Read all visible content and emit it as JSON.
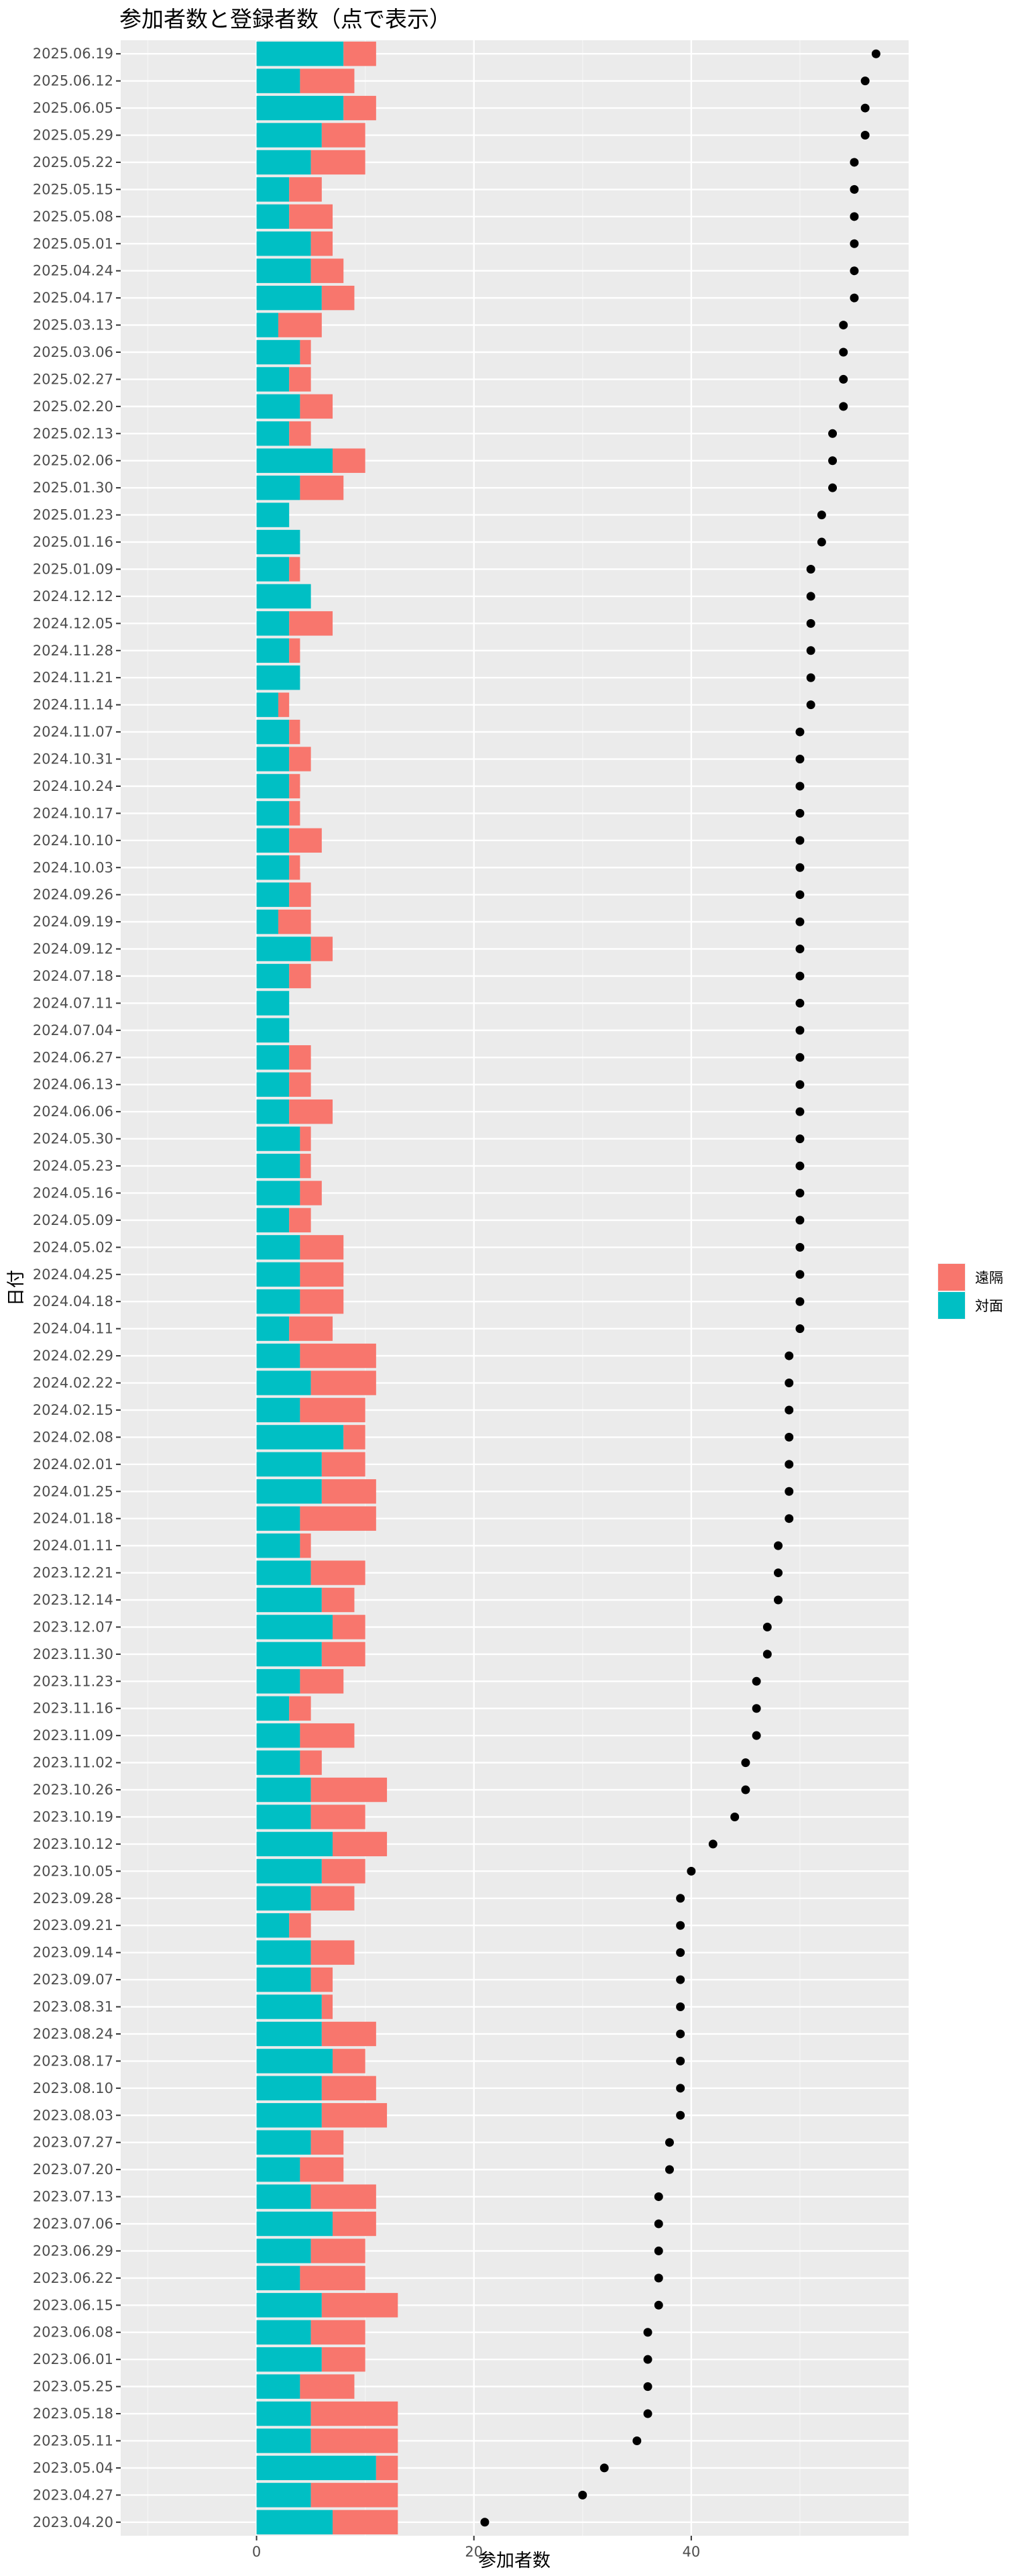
{
  "chart_data": {
    "type": "bar",
    "orientation": "horizontal",
    "stacked": true,
    "title": "参加者数と登録者数（点で表示）",
    "xlabel": "参加者数",
    "ylabel": "日付",
    "xlim": [
      -12.5,
      60
    ],
    "xticks": [
      0,
      20,
      40
    ],
    "grid": true,
    "legend_position": "right",
    "legend": [
      {
        "label": "遠隔",
        "color": "#F8766D"
      },
      {
        "label": "対面",
        "color": "#00BFC4"
      }
    ],
    "categories": [
      "2025.06.19",
      "2025.06.12",
      "2025.06.05",
      "2025.05.29",
      "2025.05.22",
      "2025.05.15",
      "2025.05.08",
      "2025.05.01",
      "2025.04.24",
      "2025.04.17",
      "2025.03.13",
      "2025.03.06",
      "2025.02.27",
      "2025.02.20",
      "2025.02.13",
      "2025.02.06",
      "2025.01.30",
      "2025.01.23",
      "2025.01.16",
      "2025.01.09",
      "2024.12.12",
      "2024.12.05",
      "2024.11.28",
      "2024.11.21",
      "2024.11.14",
      "2024.11.07",
      "2024.10.31",
      "2024.10.24",
      "2024.10.17",
      "2024.10.10",
      "2024.10.03",
      "2024.09.26",
      "2024.09.19",
      "2024.09.12",
      "2024.07.18",
      "2024.07.11",
      "2024.07.04",
      "2024.06.27",
      "2024.06.13",
      "2024.06.06",
      "2024.05.30",
      "2024.05.23",
      "2024.05.16",
      "2024.05.09",
      "2024.05.02",
      "2024.04.25",
      "2024.04.18",
      "2024.04.11",
      "2024.02.29",
      "2024.02.22",
      "2024.02.15",
      "2024.02.08",
      "2024.02.01",
      "2024.01.25",
      "2024.01.18",
      "2024.01.11",
      "2023.12.21",
      "2023.12.14",
      "2023.12.07",
      "2023.11.30",
      "2023.11.23",
      "2023.11.16",
      "2023.11.09",
      "2023.11.02",
      "2023.10.26",
      "2023.10.19",
      "2023.10.12",
      "2023.10.05",
      "2023.09.28",
      "2023.09.21",
      "2023.09.14",
      "2023.09.07",
      "2023.08.31",
      "2023.08.24",
      "2023.08.17",
      "2023.08.10",
      "2023.08.03",
      "2023.07.27",
      "2023.07.20",
      "2023.07.13",
      "2023.07.06",
      "2023.06.29",
      "2023.06.22",
      "2023.06.15",
      "2023.06.08",
      "2023.06.01",
      "2023.05.25",
      "2023.05.18",
      "2023.05.11",
      "2023.05.04",
      "2023.04.27",
      "2023.04.20"
    ],
    "series": [
      {
        "name": "対面",
        "color": "#00BFC4",
        "values": [
          8,
          4,
          8,
          6,
          5,
          3,
          3,
          5,
          5,
          6,
          2,
          4,
          3,
          4,
          3,
          7,
          4,
          3,
          4,
          3,
          5,
          3,
          3,
          4,
          2,
          3,
          3,
          3,
          3,
          3,
          3,
          3,
          2,
          5,
          3,
          3,
          3,
          3,
          3,
          3,
          4,
          4,
          4,
          3,
          4,
          4,
          4,
          3,
          4,
          5,
          4,
          8,
          6,
          6,
          4,
          4,
          5,
          6,
          7,
          6,
          4,
          3,
          4,
          4,
          5,
          5,
          7,
          6,
          5,
          3,
          5,
          5,
          6,
          6,
          7,
          6,
          6,
          5,
          4,
          5,
          7,
          5,
          4,
          6,
          5,
          6,
          4,
          5,
          5,
          11,
          5,
          7
        ]
      },
      {
        "name": "遠隔",
        "color": "#F8766D",
        "values": [
          3,
          5,
          3,
          4,
          5,
          3,
          4,
          2,
          3,
          3,
          4,
          1,
          2,
          3,
          2,
          3,
          4,
          0,
          0,
          1,
          0,
          4,
          1,
          0,
          1,
          1,
          2,
          1,
          1,
          3,
          1,
          2,
          3,
          2,
          2,
          0,
          0,
          2,
          2,
          4,
          1,
          1,
          2,
          2,
          4,
          4,
          4,
          4,
          7,
          6,
          6,
          2,
          4,
          5,
          7,
          1,
          5,
          3,
          3,
          4,
          4,
          2,
          5,
          2,
          7,
          5,
          5,
          4,
          4,
          2,
          4,
          2,
          1,
          5,
          3,
          5,
          6,
          3,
          4,
          6,
          4,
          5,
          6,
          7,
          5,
          4,
          5,
          8,
          8,
          2,
          8,
          6
        ]
      }
    ],
    "points": {
      "name": "登録者数",
      "color": "#000000",
      "values": [
        57,
        56,
        56,
        56,
        55,
        55,
        55,
        55,
        55,
        55,
        54,
        54,
        54,
        54,
        53,
        53,
        53,
        52,
        52,
        51,
        51,
        51,
        51,
        51,
        51,
        50,
        50,
        50,
        50,
        50,
        50,
        50,
        50,
        50,
        50,
        50,
        50,
        50,
        50,
        50,
        50,
        50,
        50,
        50,
        50,
        50,
        50,
        50,
        49,
        49,
        49,
        49,
        49,
        49,
        49,
        48,
        48,
        48,
        47,
        47,
        46,
        46,
        46,
        45,
        45,
        44,
        42,
        40,
        39,
        39,
        39,
        39,
        39,
        39,
        39,
        39,
        39,
        38,
        38,
        37,
        37,
        37,
        37,
        37,
        36,
        36,
        36,
        36,
        35,
        32,
        30,
        21
      ]
    }
  }
}
